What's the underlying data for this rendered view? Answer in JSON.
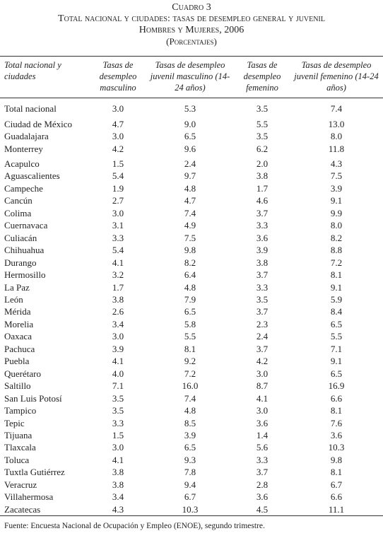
{
  "header": {
    "number": "Cuadro 3",
    "title": "Total nacional y ciudades: tasas de desempleo general y juvenil",
    "subtitle": "Hombres y Mujeres, 2006",
    "unit": "(Porcentajes)"
  },
  "table": {
    "columns": [
      "Total nacional y ciudades",
      "Tasas de desempleo masculino",
      "Tasas de desempleo juvenil masculino (14-24 años)",
      "Tasas de desempleo femenino",
      "Tasas de desempleo juvenil femenino (14-24 años)"
    ],
    "groups": [
      [
        [
          "Total nacional",
          "3.0",
          "5.3",
          "3.5",
          "7.4"
        ]
      ],
      [
        [
          "Ciudad de México",
          "4.7",
          "9.0",
          "5.5",
          "13.0"
        ],
        [
          "Guadalajara",
          "3.0",
          "6.5",
          "3.5",
          "8.0"
        ],
        [
          "Monterrey",
          "4.2",
          "9.6",
          "6.2",
          "11.8"
        ]
      ],
      [
        [
          "Acapulco",
          "1.5",
          "2.4",
          "2.0",
          "4.3"
        ],
        [
          "Aguascalientes",
          "5.4",
          "9.7",
          "3.8",
          "7.5"
        ],
        [
          "Campeche",
          "1.9",
          "4.8",
          "1.7",
          "3.9"
        ],
        [
          "Cancún",
          "2.7",
          "4.7",
          "4.6",
          "9.1"
        ],
        [
          "Colima",
          "3.0",
          "7.4",
          "3.7",
          "9.9"
        ],
        [
          "Cuernavaca",
          "3.1",
          "4.9",
          "3.3",
          "8.0"
        ],
        [
          "Culiacán",
          "3.3",
          "7.5",
          "3.6",
          "8.2"
        ],
        [
          "Chihuahua",
          "5.4",
          "9.8",
          "3.9",
          "8.8"
        ],
        [
          "Durango",
          "4.1",
          "8.2",
          "3.8",
          "7.2"
        ],
        [
          "Hermosillo",
          "3.2",
          "6.4",
          "3.7",
          "8.1"
        ],
        [
          "La Paz",
          "1.7",
          "4.8",
          "3.3",
          "9.1"
        ],
        [
          "León",
          "3.8",
          "7.9",
          "3.5",
          "5.9"
        ],
        [
          "Mérida",
          "2.6",
          "6.5",
          "3.7",
          "8.4"
        ],
        [
          "Morelia",
          "3.4",
          "5.8",
          "2.3",
          "6.5"
        ],
        [
          "Oaxaca",
          "3.0",
          "5.5",
          "2.4",
          "5.5"
        ],
        [
          "Pachuca",
          "3.9",
          "8.1",
          "3.7",
          "7.1"
        ],
        [
          "Puebla",
          "4.1",
          "9.2",
          "4.2",
          "9.1"
        ],
        [
          "Querétaro",
          "4.0",
          "7.2",
          "3.0",
          "6.5"
        ],
        [
          "Saltillo",
          "7.1",
          "16.0",
          "8.7",
          "16.9"
        ],
        [
          "San Luis Potosí",
          "3.5",
          "7.4",
          "4.1",
          "6.6"
        ],
        [
          "Tampico",
          "3.5",
          "4.8",
          "3.0",
          "8.1"
        ],
        [
          "Tepic",
          "3.3",
          "8.5",
          "3.6",
          "7.6"
        ],
        [
          "Tijuana",
          "1.5",
          "3.9",
          "1.4",
          "3.6"
        ],
        [
          "Tlaxcala",
          "3.0",
          "6.5",
          "5.6",
          "10.3"
        ],
        [
          "Toluca",
          "4.1",
          "9.3",
          "3.3",
          "9.8"
        ],
        [
          "Tuxtla Gutiérrez",
          "3.8",
          "7.8",
          "3.7",
          "8.1"
        ],
        [
          "Veracruz",
          "3.8",
          "9.4",
          "2.8",
          "6.7"
        ],
        [
          "Villahermosa",
          "3.4",
          "6.7",
          "3.6",
          "6.6"
        ],
        [
          "Zacatecas",
          "4.3",
          "10.3",
          "4.5",
          "11.1"
        ]
      ]
    ]
  },
  "footer": {
    "source": "Fuente: Encuesta Nacional de Ocupación y Empleo (ENOE), segundo trimestre."
  }
}
